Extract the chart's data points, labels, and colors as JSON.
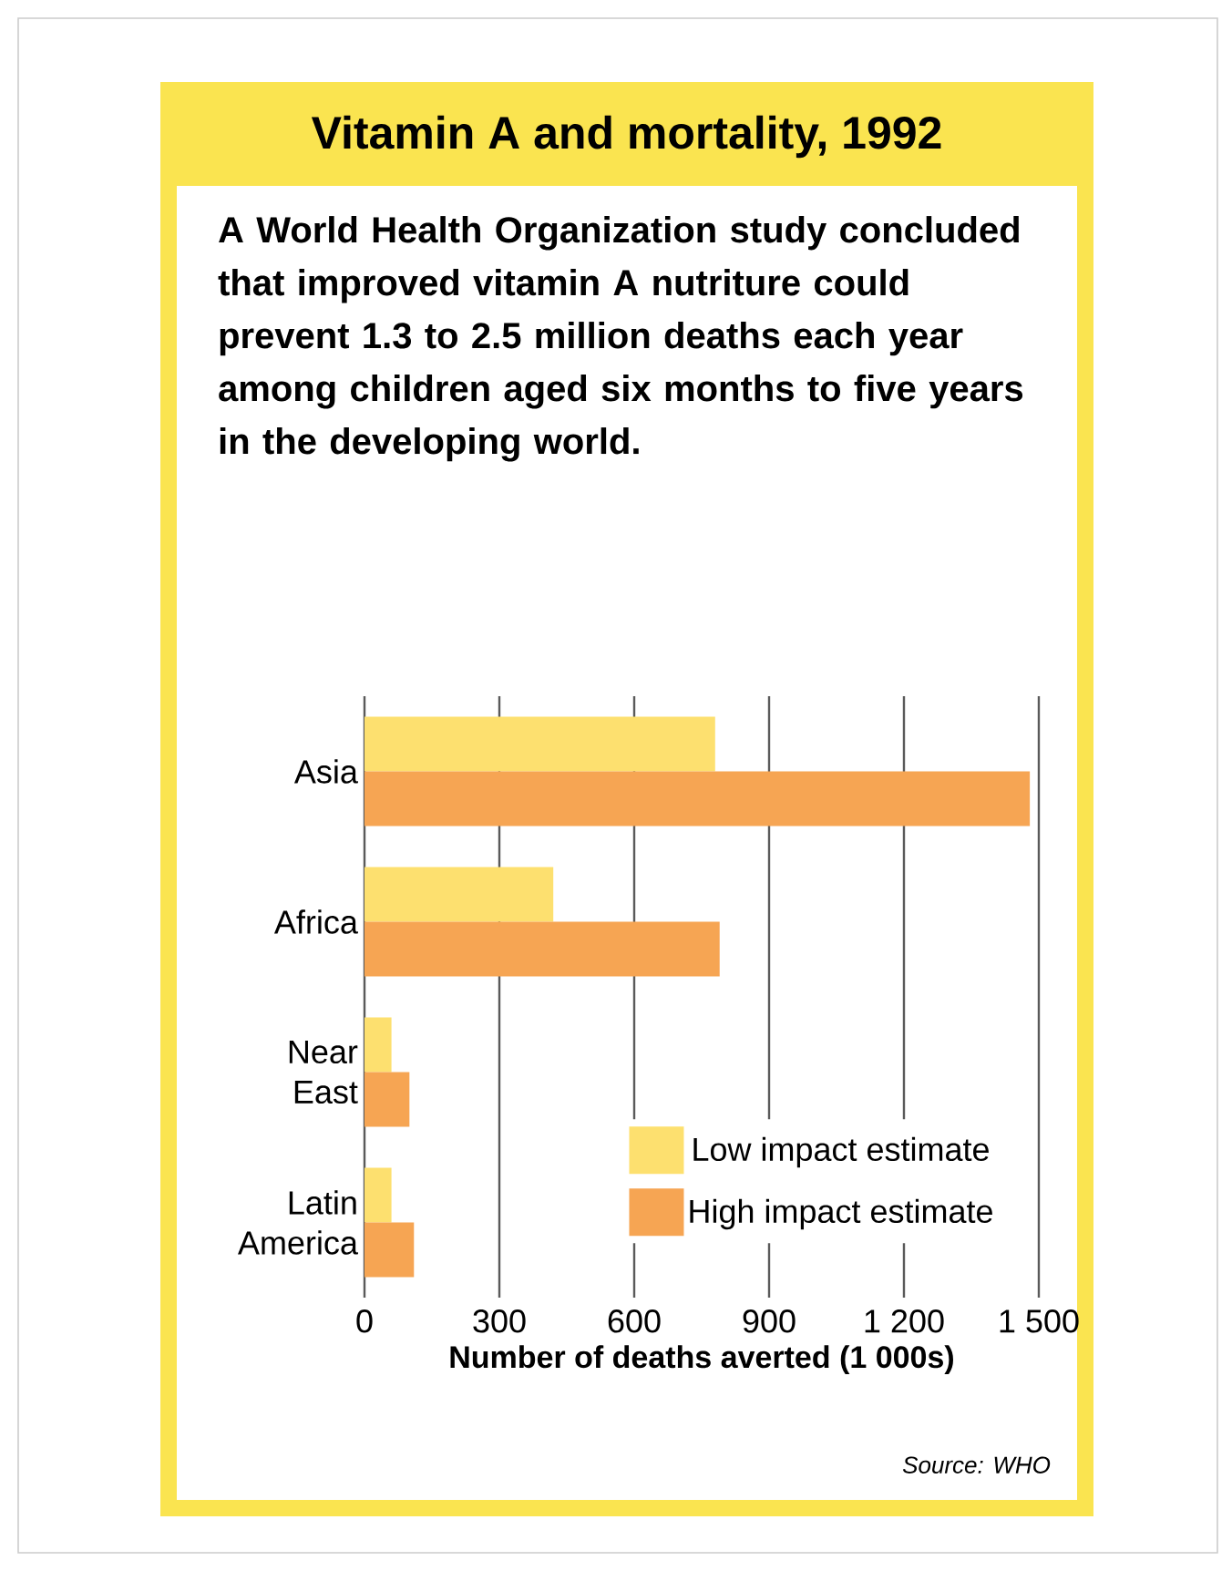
{
  "chart_data": {
    "type": "bar",
    "orientation": "horizontal",
    "title": "Vitamin A and mortality, 1992",
    "subtitle": "A World Health Organization study concluded that improved vitamin A nutriture could prevent 1.3 to 2.5 million deaths each year among children aged six months to five years in the developing world.",
    "categories": [
      "Asia",
      "Africa",
      "Near East",
      "Latin America"
    ],
    "series": [
      {
        "name": "Low impact estimate",
        "color": "#fde06f",
        "values": [
          780,
          420,
          60,
          60
        ]
      },
      {
        "name": "High impact estimate",
        "color": "#f6a553",
        "values": [
          1480,
          790,
          100,
          110
        ]
      }
    ],
    "xlabel": "Number of deaths averted (1 000s)",
    "xlim": [
      0,
      1500
    ],
    "xticks": [
      0,
      300,
      600,
      900,
      {
        "value": 1200,
        "label": "1 200"
      },
      {
        "value": 1500,
        "label": "1 500"
      }
    ],
    "grid": "x",
    "legend": "bottom right",
    "annotations": [
      "Source: WHO"
    ]
  }
}
